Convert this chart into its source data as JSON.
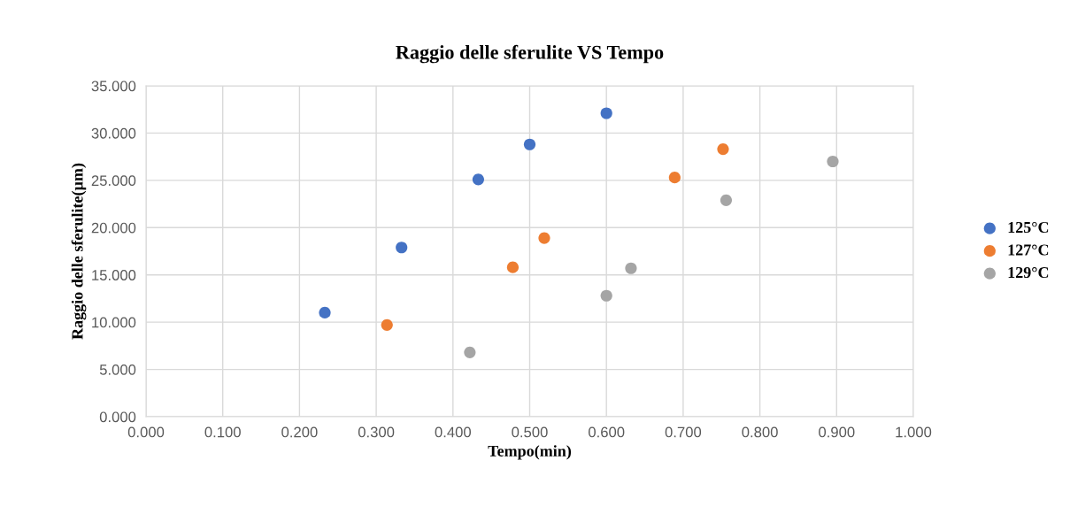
{
  "chart_data": {
    "type": "scatter",
    "title": "Raggio delle sferulite VS Tempo",
    "xlabel": "Tempo(min)",
    "ylabel": "Raggio delle sferulite(µm)",
    "series": [
      {
        "name": "125°C",
        "color": "#4472c4",
        "x": [
          0.233,
          0.333,
          0.433,
          0.5,
          0.6
        ],
        "values": [
          11.0,
          17.9,
          25.1,
          28.8,
          32.1
        ]
      },
      {
        "name": "127°C",
        "color": "#ed7d31",
        "x": [
          0.314,
          0.478,
          0.519,
          0.689,
          0.752
        ],
        "values": [
          9.7,
          15.8,
          18.9,
          25.3,
          28.3
        ]
      },
      {
        "name": "129°C",
        "color": "#a5a5a5",
        "x": [
          0.422,
          0.6,
          0.632,
          0.756,
          0.895
        ],
        "values": [
          6.8,
          12.8,
          15.7,
          22.9,
          27.0
        ]
      }
    ],
    "xlim": [
      0,
      1
    ],
    "xticks": [
      {
        "value": 0,
        "label": "0.000"
      },
      {
        "value": 0.1,
        "label": "0.100"
      },
      {
        "value": 0.2,
        "label": "0.200"
      },
      {
        "value": 0.3,
        "label": "0.300"
      },
      {
        "value": 0.4,
        "label": "0.400"
      },
      {
        "value": 0.5,
        "label": "0.500"
      },
      {
        "value": 0.6,
        "label": "0.600"
      },
      {
        "value": 0.7,
        "label": "0.700"
      },
      {
        "value": 0.8,
        "label": "0.800"
      },
      {
        "value": 0.9,
        "label": "0.900"
      },
      {
        "value": 1,
        "label": "1.000"
      }
    ],
    "ylim": [
      0,
      35
    ],
    "yticks": [
      {
        "value": 0,
        "label": "0.000"
      },
      {
        "value": 5,
        "label": "5.000"
      },
      {
        "value": 10,
        "label": "10.000"
      },
      {
        "value": 15,
        "label": "15.000"
      },
      {
        "value": 20,
        "label": "20.000"
      },
      {
        "value": 25,
        "label": "25.000"
      },
      {
        "value": 30,
        "label": "30.000"
      },
      {
        "value": 35,
        "label": "35.000"
      }
    ],
    "grid": true,
    "legend": "right",
    "marker": "circle"
  }
}
